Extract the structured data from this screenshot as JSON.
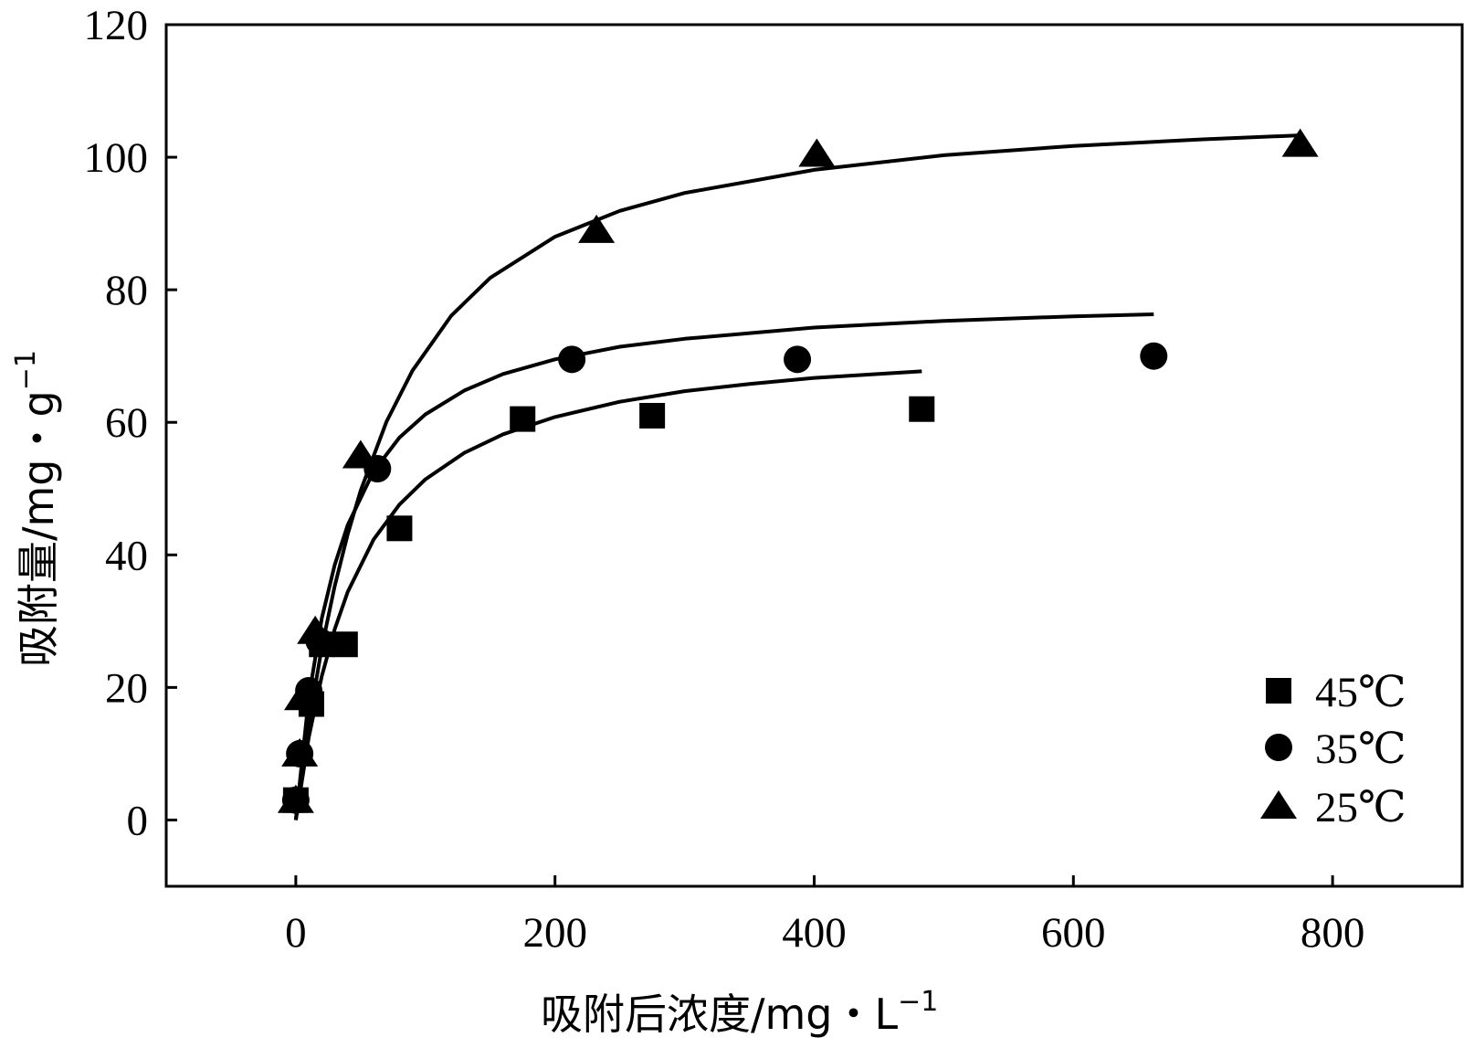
{
  "chart_data": {
    "type": "scatter",
    "title": "",
    "xlabel": "吸附后浓度/mg・L",
    "xlabel_sup": "−1",
    "ylabel": "吸附量/mg・g",
    "ylabel_sup": "−1",
    "xlim": [
      -100,
      900
    ],
    "ylim": [
      -10,
      120
    ],
    "xticks": [
      0,
      200,
      400,
      600,
      800
    ],
    "yticks": [
      0,
      20,
      40,
      60,
      80,
      100,
      120
    ],
    "grid": false,
    "legend_position": "bottom-right",
    "series": [
      {
        "name": "45℃",
        "marker": "square",
        "x": [
          0,
          12,
          20,
          38,
          80,
          175,
          275,
          483
        ],
        "y": [
          3,
          17.5,
          26.5,
          26.5,
          44,
          60.5,
          61,
          62
        ],
        "fit": {
          "x": [
            0,
            10,
            20,
            30,
            40,
            60,
            80,
            100,
            130,
            160,
            200,
            250,
            300,
            350,
            400,
            450,
            483
          ],
          "y": [
            0,
            12.5,
            21.7,
            28.8,
            34.4,
            42.3,
            47.6,
            51.4,
            55.4,
            58.2,
            60.8,
            63.1,
            64.7,
            65.8,
            66.7,
            67.3,
            67.7
          ]
        }
      },
      {
        "name": "35℃",
        "marker": "circle",
        "x": [
          0,
          3,
          10,
          18,
          63,
          213,
          387,
          662
        ],
        "y": [
          3,
          10,
          19.5,
          27,
          53,
          69.5,
          69.5,
          70
        ],
        "fit": {
          "x": [
            0,
            10,
            20,
            30,
            40,
            60,
            80,
            100,
            130,
            160,
            200,
            250,
            300,
            400,
            500,
            600,
            662
          ],
          "y": [
            0,
            18.5,
            30.4,
            38.5,
            44.5,
            52.6,
            57.7,
            61.2,
            64.8,
            67.3,
            69.5,
            71.4,
            72.6,
            74.3,
            75.3,
            76.0,
            76.3
          ]
        }
      },
      {
        "name": "25℃",
        "marker": "triangle",
        "x": [
          0,
          3,
          5,
          15,
          50,
          232,
          402,
          775
        ],
        "y": [
          3,
          10,
          18.5,
          28.5,
          55,
          89,
          100.5,
          102
        ],
        "fit": {
          "x": [
            0,
            10,
            20,
            30,
            40,
            50,
            70,
            90,
            120,
            150,
            200,
            250,
            300,
            400,
            500,
            600,
            700,
            775
          ],
          "y": [
            0,
            14.5,
            26.0,
            35.3,
            43.1,
            49.7,
            60.1,
            67.8,
            76.1,
            81.8,
            88.0,
            91.9,
            94.6,
            98.1,
            100.3,
            101.7,
            102.7,
            103.3
          ]
        }
      }
    ]
  }
}
